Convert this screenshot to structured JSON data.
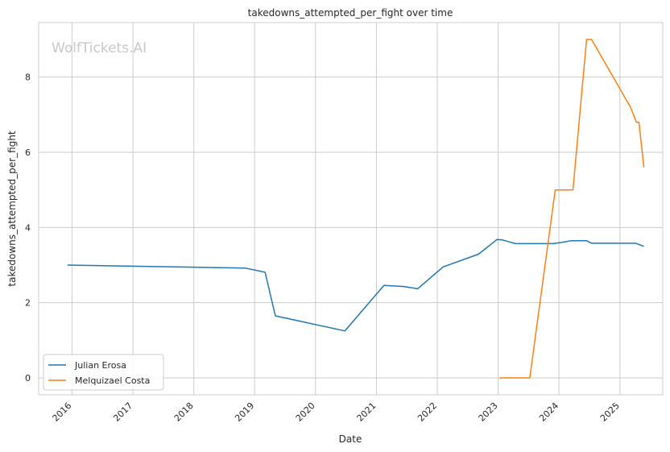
{
  "chart_data": {
    "type": "line",
    "title": "takedowns_attempted_per_fight over time",
    "xlabel": "Date",
    "ylabel": "takedowns_attempted_per_fight",
    "watermark": "WolfTickets.AI",
    "x_ticks": [
      "2016",
      "2017",
      "2018",
      "2019",
      "2020",
      "2021",
      "2022",
      "2023",
      "2024",
      "2025"
    ],
    "y_ticks": [
      "0",
      "2",
      "4",
      "6",
      "8"
    ],
    "xlim": [
      "2015-06-15",
      "2025-09-15"
    ],
    "ylim": [
      -0.45,
      9.45
    ],
    "grid": true,
    "legend_position": "lower-left",
    "series": [
      {
        "name": "Julian Erosa",
        "color": "#1f77b4",
        "points": [
          [
            "2015-12-05",
            3.0
          ],
          [
            "2018-11-05",
            2.92
          ],
          [
            "2019-03-05",
            2.81
          ],
          [
            "2019-05-05",
            1.65
          ],
          [
            "2020-06-25",
            1.25
          ],
          [
            "2021-02-15",
            2.46
          ],
          [
            "2021-06-15",
            2.43
          ],
          [
            "2021-09-05",
            2.37
          ],
          [
            "2022-02-05",
            2.95
          ],
          [
            "2022-09-05",
            3.29
          ],
          [
            "2022-12-25",
            3.68
          ],
          [
            "2023-01-25",
            3.67
          ],
          [
            "2023-04-15",
            3.57
          ],
          [
            "2023-11-25",
            3.57
          ],
          [
            "2024-01-15",
            3.6
          ],
          [
            "2024-03-15",
            3.65
          ],
          [
            "2024-06-15",
            3.65
          ],
          [
            "2024-07-15",
            3.58
          ],
          [
            "2025-04-05",
            3.58
          ],
          [
            "2025-05-25",
            3.5
          ]
        ]
      },
      {
        "name": "Melquizael Costa",
        "color": "#ff7f0e",
        "points": [
          [
            "2023-01-10",
            0.0
          ],
          [
            "2023-07-10",
            0.0
          ],
          [
            "2023-12-10",
            5.0
          ],
          [
            "2024-03-25",
            5.0
          ],
          [
            "2024-06-15",
            9.0
          ],
          [
            "2024-07-15",
            9.0
          ],
          [
            "2025-03-05",
            7.2
          ],
          [
            "2025-04-10",
            6.8
          ],
          [
            "2025-04-25",
            6.8
          ],
          [
            "2025-05-25",
            5.6
          ]
        ]
      }
    ]
  }
}
